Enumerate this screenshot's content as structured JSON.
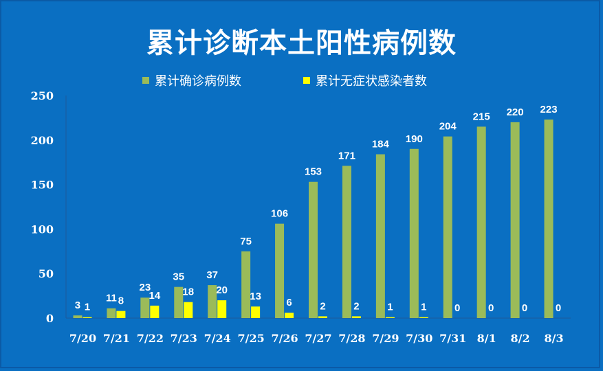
{
  "chart_data": {
    "type": "bar",
    "title": "累计诊断本土阳性病例数",
    "categories": [
      "7/20",
      "7/21",
      "7/22",
      "7/23",
      "7/24",
      "7/25",
      "7/26",
      "7/27",
      "7/28",
      "7/29",
      "7/30",
      "7/31",
      "8/1",
      "8/2",
      "8/3"
    ],
    "series": [
      {
        "name": "累计确诊病例数",
        "color": "#9bbb59",
        "values": [
          3,
          11,
          23,
          35,
          37,
          75,
          106,
          153,
          171,
          184,
          190,
          204,
          215,
          220,
          223
        ]
      },
      {
        "name": "累计无症状感染者数",
        "color": "#ffff00",
        "values": [
          1,
          8,
          14,
          18,
          20,
          13,
          6,
          2,
          2,
          1,
          1,
          0,
          0,
          0,
          0
        ]
      }
    ],
    "ylim": [
      0,
      250
    ],
    "yticks": [
      0,
      50,
      100,
      150,
      200,
      250
    ],
    "xlabel": "",
    "ylabel": "",
    "legend": "top-center"
  }
}
